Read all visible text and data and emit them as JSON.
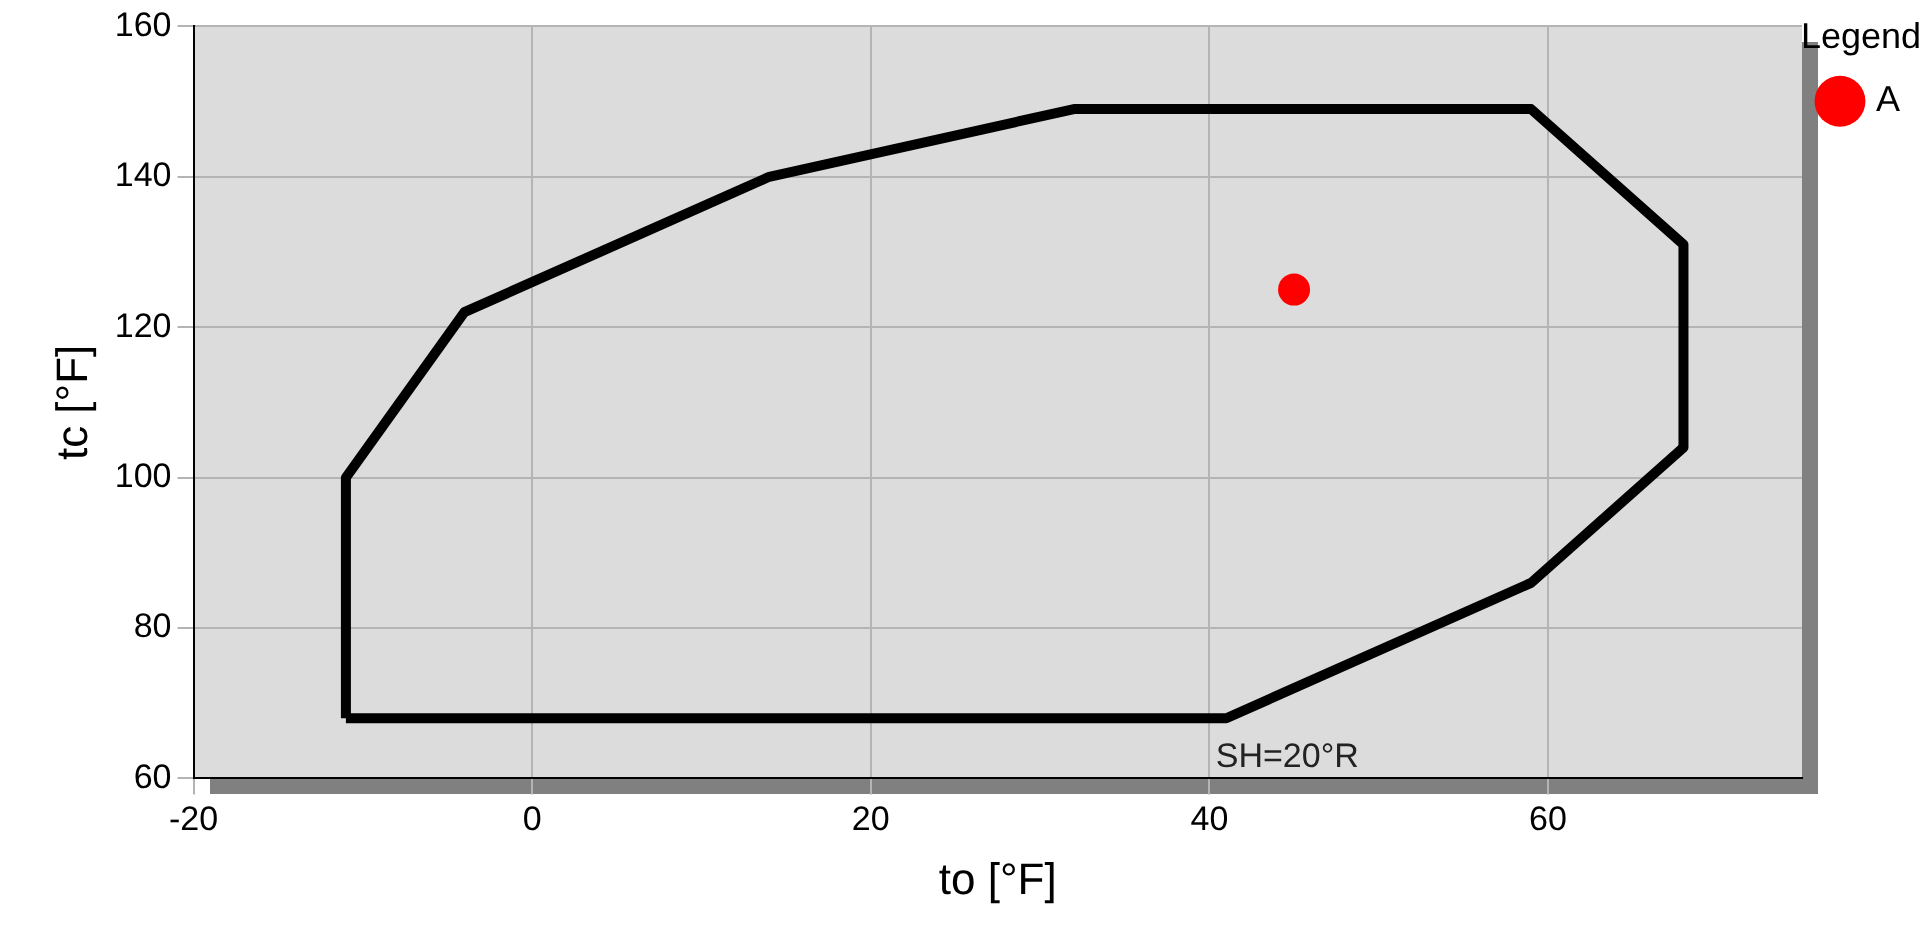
{
  "chart_data": {
    "type": "line",
    "xlabel": "to [°F]",
    "ylabel": "tc [°F]",
    "legend_title": "Legend",
    "legend": "top right",
    "grid": true,
    "xlim": [
      -20,
      75
    ],
    "xticks": [
      -20,
      0,
      20,
      40,
      60
    ],
    "ylim": [
      60,
      160
    ],
    "yticks": [
      60,
      80,
      100,
      120,
      140,
      160
    ],
    "annotations": [
      "SH=20°R"
    ],
    "series": [
      {
        "color": "#000000",
        "line_style": "solid",
        "marker": "none",
        "x": [
          -11,
          -11,
          -4,
          14,
          32,
          59,
          68,
          68
        ],
        "values": [
          68,
          100,
          122,
          140,
          149,
          149,
          131,
          104
        ]
      },
      {
        "color": "#000000",
        "line_style": "solid",
        "marker": "none",
        "x": [
          -11,
          41,
          59,
          68
        ],
        "values": [
          68,
          68,
          86,
          104
        ]
      },
      {
        "type": "scatter",
        "name": "A",
        "color": "#ff0000",
        "marker": "circle",
        "x": [
          45
        ],
        "values": [
          125
        ]
      }
    ]
  }
}
